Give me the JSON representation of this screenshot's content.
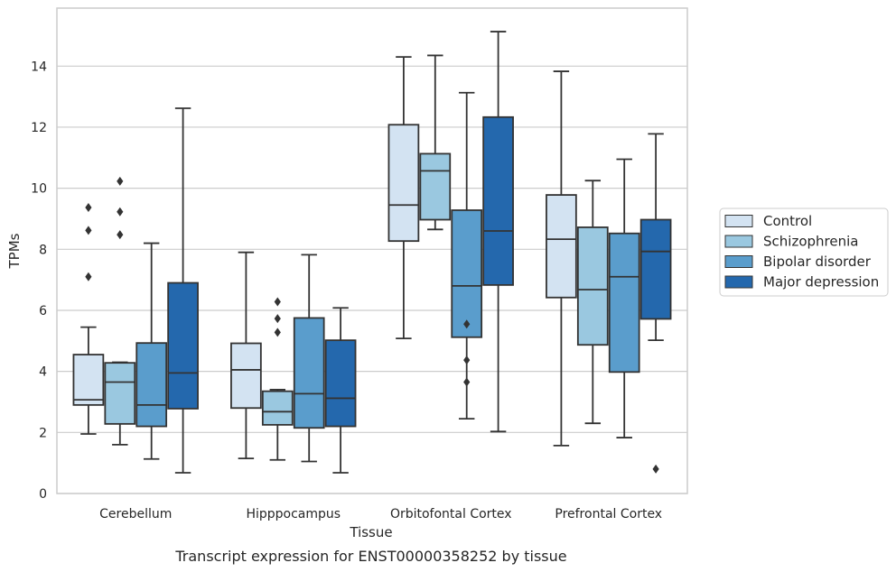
{
  "chart_data": {
    "type": "box",
    "title": "",
    "caption": "Transcript expression for ENST00000358252 by tissue",
    "xlabel": "Tissue",
    "ylabel": "TPMs",
    "ylim": [
      0,
      15.9
    ],
    "yticks": [
      0,
      2,
      4,
      6,
      8,
      10,
      12,
      14
    ],
    "grid": "horizontal",
    "legend_position": "right",
    "categories": [
      "Cerebellum",
      "Hipppocampus",
      "Orbitofontal Cortex",
      "Prefrontal Cortex"
    ],
    "series": [
      {
        "name": "Control",
        "color": "#d3e3f2",
        "boxes": [
          {
            "whislo": 1.95,
            "q1": 2.9,
            "med": 3.07,
            "q3": 4.55,
            "whishi": 5.45,
            "fliers": [
              7.1,
              8.62,
              9.37
            ]
          },
          {
            "whislo": 1.15,
            "q1": 2.8,
            "med": 4.05,
            "q3": 4.92,
            "whishi": 7.9,
            "fliers": []
          },
          {
            "whislo": 5.08,
            "q1": 8.27,
            "med": 9.45,
            "q3": 12.08,
            "whishi": 14.3,
            "fliers": []
          },
          {
            "whislo": 1.57,
            "q1": 6.42,
            "med": 8.33,
            "q3": 9.78,
            "whishi": 13.83,
            "fliers": []
          }
        ]
      },
      {
        "name": "Schizophrenia",
        "color": "#9ac8e0",
        "boxes": [
          {
            "whislo": 1.6,
            "q1": 2.28,
            "med": 3.65,
            "q3": 4.28,
            "whishi": 4.3,
            "fliers": [
              8.48,
              9.23,
              10.23
            ]
          },
          {
            "whislo": 1.1,
            "q1": 2.25,
            "med": 2.68,
            "q3": 3.35,
            "whishi": 3.4,
            "fliers": [
              5.28,
              5.73,
              6.28
            ]
          },
          {
            "whislo": 8.65,
            "q1": 8.97,
            "med": 10.57,
            "q3": 11.13,
            "whishi": 14.35,
            "fliers": []
          },
          {
            "whislo": 2.3,
            "q1": 4.87,
            "med": 6.68,
            "q3": 8.72,
            "whishi": 10.25,
            "fliers": []
          }
        ]
      },
      {
        "name": "Bipolar disorder",
        "color": "#5a9dcc",
        "boxes": [
          {
            "whislo": 1.13,
            "q1": 2.2,
            "med": 2.9,
            "q3": 4.93,
            "whishi": 8.2,
            "fliers": []
          },
          {
            "whislo": 1.05,
            "q1": 2.15,
            "med": 3.27,
            "q3": 5.75,
            "whishi": 7.82,
            "fliers": []
          },
          {
            "whislo": 2.45,
            "q1": 5.12,
            "med": 6.8,
            "q3": 9.28,
            "whishi": 13.13,
            "fliers": [
              3.65,
              4.37,
              5.55
            ]
          },
          {
            "whislo": 1.83,
            "q1": 3.98,
            "med": 7.1,
            "q3": 8.52,
            "whishi": 10.95,
            "fliers": []
          }
        ]
      },
      {
        "name": "Major depression",
        "color": "#2468ad",
        "boxes": [
          {
            "whislo": 0.68,
            "q1": 2.78,
            "med": 3.95,
            "q3": 6.9,
            "whishi": 12.62,
            "fliers": []
          },
          {
            "whislo": 0.68,
            "q1": 2.2,
            "med": 3.12,
            "q3": 5.02,
            "whishi": 6.08,
            "fliers": []
          },
          {
            "whislo": 2.03,
            "q1": 6.83,
            "med": 8.6,
            "q3": 12.33,
            "whishi": 15.13,
            "fliers": []
          },
          {
            "whislo": 5.02,
            "q1": 5.72,
            "med": 7.93,
            "q3": 8.97,
            "whishi": 11.78,
            "fliers": [
              0.8
            ]
          }
        ]
      }
    ]
  }
}
